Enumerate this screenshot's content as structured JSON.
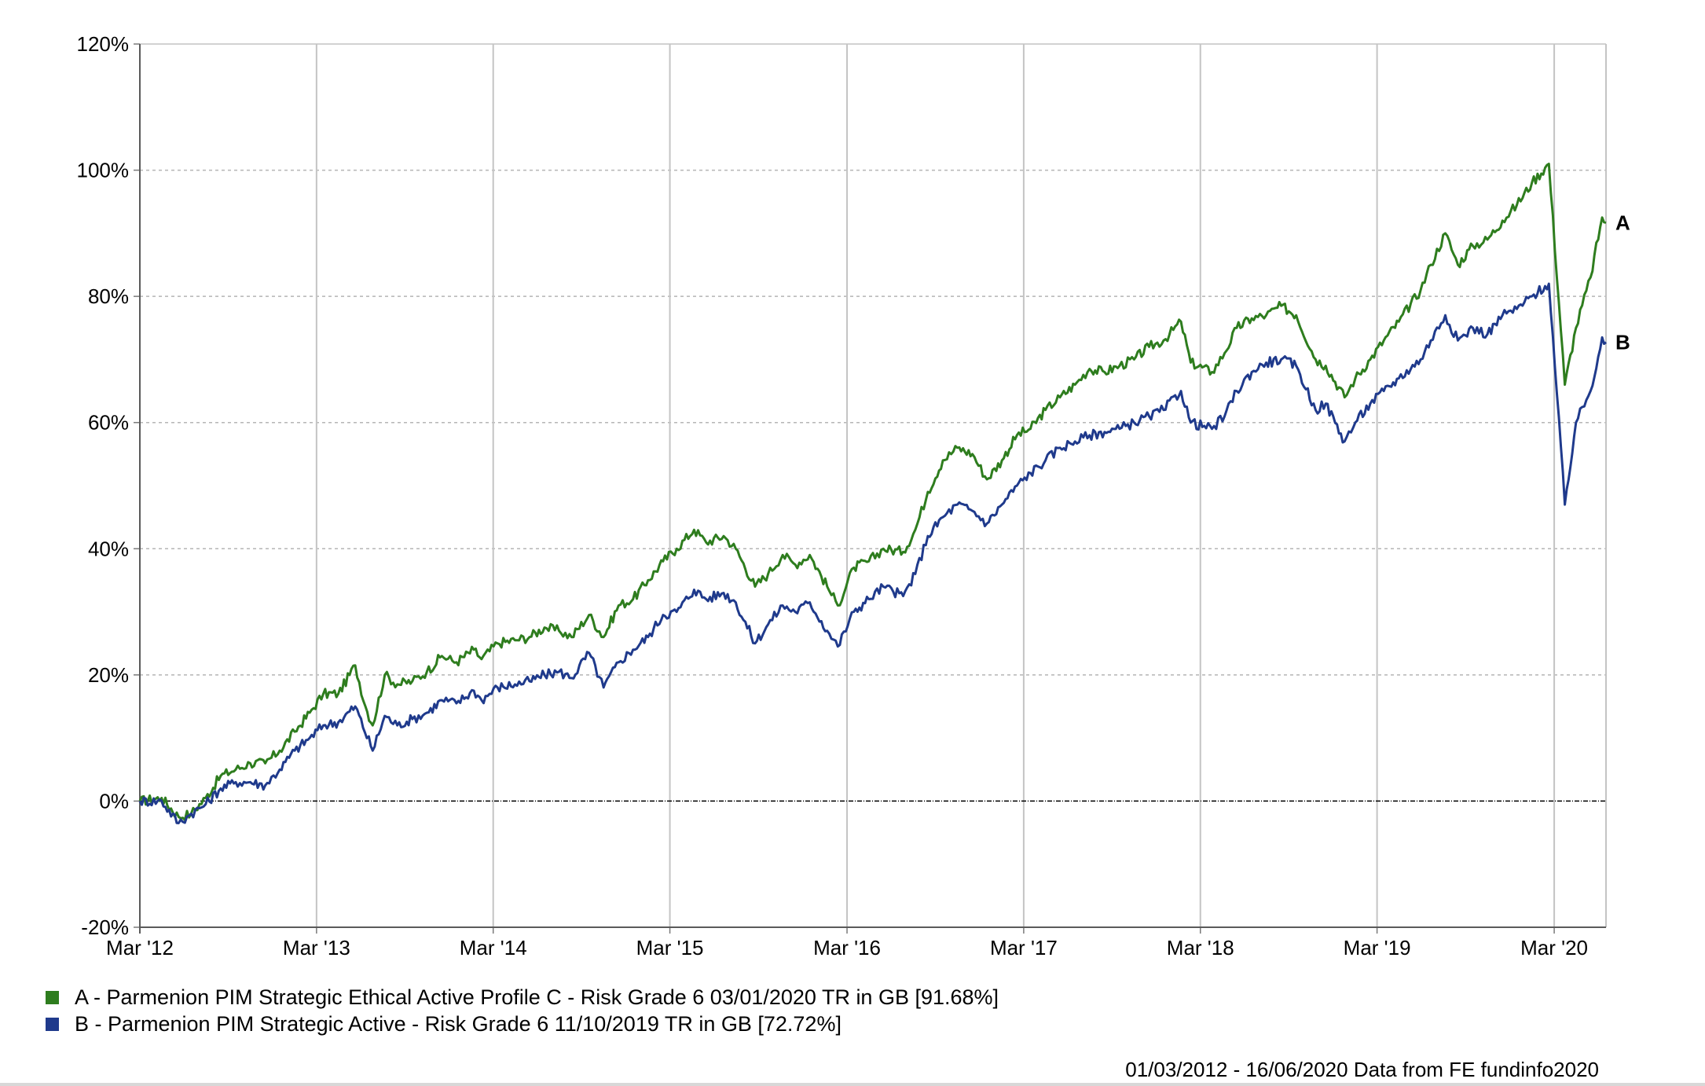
{
  "chart_data": {
    "type": "line",
    "title": "",
    "xlabel": "",
    "ylabel": "",
    "ylim": [
      -20,
      120
    ],
    "xlim": [
      "2012-03-01",
      "2020-06-16"
    ],
    "y_tick_labels": [
      "120%",
      "100%",
      "80%",
      "60%",
      "40%",
      "20%",
      "0%",
      "-20%"
    ],
    "y_tick_values": [
      120,
      100,
      80,
      60,
      40,
      20,
      0,
      -20
    ],
    "x_tick_labels": [
      "Mar '12",
      "Mar '13",
      "Mar '14",
      "Mar '15",
      "Mar '16",
      "Mar '17",
      "Mar '18",
      "Mar '19",
      "Mar '20"
    ],
    "x_tick_dates": [
      "2012-03-01",
      "2013-03-01",
      "2014-03-01",
      "2015-03-01",
      "2016-03-01",
      "2017-03-01",
      "2018-03-01",
      "2019-03-01",
      "2020-03-01"
    ],
    "grid": true,
    "legend_position": "bottom-left",
    "series": [
      {
        "name": "A - Parmenion PIM Strategic Ethical Active Profile C - Risk Grade 6 03/01/2020 TR in GB [91.68%]",
        "end_label": "A",
        "color": "#2e7d1e",
        "points": [
          [
            "2012-03-01",
            0
          ],
          [
            "2012-04-15",
            0.5
          ],
          [
            "2012-05-20",
            -2.5
          ],
          [
            "2012-06-15",
            -2
          ],
          [
            "2012-07-15",
            0.5
          ],
          [
            "2012-08-15",
            4
          ],
          [
            "2012-09-15",
            5
          ],
          [
            "2012-10-15",
            6
          ],
          [
            "2012-11-15",
            6
          ],
          [
            "2012-12-15",
            8
          ],
          [
            "2013-01-15",
            11
          ],
          [
            "2013-02-15",
            14
          ],
          [
            "2013-03-15",
            17
          ],
          [
            "2013-04-15",
            17
          ],
          [
            "2013-05-20",
            21.5
          ],
          [
            "2013-06-10",
            15
          ],
          [
            "2013-06-25",
            12
          ],
          [
            "2013-07-20",
            20
          ],
          [
            "2013-08-15",
            18.5
          ],
          [
            "2013-09-15",
            19
          ],
          [
            "2013-10-15",
            20.5
          ],
          [
            "2013-11-15",
            23
          ],
          [
            "2013-12-15",
            22
          ],
          [
            "2014-01-20",
            24
          ],
          [
            "2014-02-05",
            22.5
          ],
          [
            "2014-03-10",
            25
          ],
          [
            "2014-04-15",
            25.5
          ],
          [
            "2014-05-15",
            26
          ],
          [
            "2014-06-15",
            27.5
          ],
          [
            "2014-07-15",
            27
          ],
          [
            "2014-08-10",
            26
          ],
          [
            "2014-09-15",
            29.5
          ],
          [
            "2014-10-15",
            26
          ],
          [
            "2014-11-15",
            31
          ],
          [
            "2014-12-15",
            32
          ],
          [
            "2015-01-15",
            35
          ],
          [
            "2015-02-15",
            38
          ],
          [
            "2015-03-15",
            40
          ],
          [
            "2015-04-20",
            43
          ],
          [
            "2015-05-15",
            41
          ],
          [
            "2015-06-20",
            42
          ],
          [
            "2015-07-15",
            40
          ],
          [
            "2015-08-24",
            34
          ],
          [
            "2015-09-20",
            36
          ],
          [
            "2015-10-20",
            39
          ],
          [
            "2015-11-15",
            37.5
          ],
          [
            "2015-12-15",
            39
          ],
          [
            "2016-01-20",
            34
          ],
          [
            "2016-02-11",
            31
          ],
          [
            "2016-03-15",
            37
          ],
          [
            "2016-04-15",
            38
          ],
          [
            "2016-05-15",
            40
          ],
          [
            "2016-06-25",
            39.5
          ],
          [
            "2016-07-20",
            43
          ],
          [
            "2016-08-15",
            49
          ],
          [
            "2016-09-15",
            54
          ],
          [
            "2016-10-15",
            56
          ],
          [
            "2016-11-15",
            55
          ],
          [
            "2016-12-15",
            51
          ],
          [
            "2017-01-15",
            54
          ],
          [
            "2017-02-15",
            58
          ],
          [
            "2017-03-15",
            59
          ],
          [
            "2017-04-15",
            62
          ],
          [
            "2017-05-15",
            64
          ],
          [
            "2017-06-15",
            66
          ],
          [
            "2017-07-15",
            68.5
          ],
          [
            "2017-08-15",
            68
          ],
          [
            "2017-09-15",
            69
          ],
          [
            "2017-10-15",
            70
          ],
          [
            "2017-11-15",
            72
          ],
          [
            "2017-12-15",
            73
          ],
          [
            "2018-01-20",
            76
          ],
          [
            "2018-02-09",
            69.5
          ],
          [
            "2018-03-25",
            68
          ],
          [
            "2018-04-20",
            71
          ],
          [
            "2018-05-15",
            75
          ],
          [
            "2018-06-15",
            76.5
          ],
          [
            "2018-07-15",
            77
          ],
          [
            "2018-08-15",
            78.5
          ],
          [
            "2018-09-15",
            77
          ],
          [
            "2018-10-25",
            70
          ],
          [
            "2018-11-15",
            69
          ],
          [
            "2018-12-24",
            64
          ],
          [
            "2019-01-15",
            67
          ],
          [
            "2019-02-15",
            70
          ],
          [
            "2019-03-15",
            73
          ],
          [
            "2019-04-15",
            76
          ],
          [
            "2019-05-30",
            81
          ],
          [
            "2019-06-20",
            85
          ],
          [
            "2019-07-20",
            90
          ],
          [
            "2019-08-15",
            85
          ],
          [
            "2019-09-15",
            88
          ],
          [
            "2019-10-15",
            89
          ],
          [
            "2019-11-15",
            92
          ],
          [
            "2019-12-15",
            94.5
          ],
          [
            "2020-01-15",
            98
          ],
          [
            "2020-02-19",
            101
          ],
          [
            "2020-03-23",
            66
          ],
          [
            "2020-04-15",
            75
          ],
          [
            "2020-05-15",
            83
          ],
          [
            "2020-06-08",
            92.5
          ],
          [
            "2020-06-16",
            91.68
          ]
        ]
      },
      {
        "name": "B - Parmenion PIM Strategic Active - Risk Grade 6 11/10/2019 TR in GB [72.72%]",
        "end_label": "B",
        "color": "#1f3a8c",
        "points": [
          [
            "2012-03-01",
            0
          ],
          [
            "2012-04-15",
            0
          ],
          [
            "2012-05-20",
            -3.5
          ],
          [
            "2012-06-15",
            -2
          ],
          [
            "2012-07-15",
            -0.5
          ],
          [
            "2012-08-15",
            2
          ],
          [
            "2012-09-15",
            3
          ],
          [
            "2012-10-15",
            3
          ],
          [
            "2012-11-15",
            2.5
          ],
          [
            "2012-12-15",
            5
          ],
          [
            "2013-01-15",
            8
          ],
          [
            "2013-02-15",
            10
          ],
          [
            "2013-03-15",
            12
          ],
          [
            "2013-04-15",
            12.5
          ],
          [
            "2013-05-20",
            15
          ],
          [
            "2013-06-25",
            8
          ],
          [
            "2013-07-20",
            13.5
          ],
          [
            "2013-08-15",
            12
          ],
          [
            "2013-09-15",
            13
          ],
          [
            "2013-10-15",
            14
          ],
          [
            "2013-11-15",
            16
          ],
          [
            "2013-12-15",
            15.5
          ],
          [
            "2014-01-20",
            17.5
          ],
          [
            "2014-02-05",
            16
          ],
          [
            "2014-03-10",
            18
          ],
          [
            "2014-04-15",
            18.5
          ],
          [
            "2014-05-15",
            19
          ],
          [
            "2014-06-15",
            20
          ],
          [
            "2014-07-15",
            20.5
          ],
          [
            "2014-08-10",
            19.5
          ],
          [
            "2014-09-15",
            23.5
          ],
          [
            "2014-10-15",
            18
          ],
          [
            "2014-11-15",
            22
          ],
          [
            "2014-12-15",
            24
          ],
          [
            "2015-01-15",
            26
          ],
          [
            "2015-02-15",
            29.5
          ],
          [
            "2015-03-15",
            30
          ],
          [
            "2015-04-20",
            33.5
          ],
          [
            "2015-05-15",
            32
          ],
          [
            "2015-06-20",
            33
          ],
          [
            "2015-07-15",
            31.5
          ],
          [
            "2015-08-24",
            25
          ],
          [
            "2015-09-20",
            28
          ],
          [
            "2015-10-20",
            31
          ],
          [
            "2015-11-15",
            30
          ],
          [
            "2015-12-15",
            31.5
          ],
          [
            "2016-01-20",
            27
          ],
          [
            "2016-02-11",
            24.5
          ],
          [
            "2016-03-15",
            30
          ],
          [
            "2016-04-15",
            32
          ],
          [
            "2016-05-15",
            34
          ],
          [
            "2016-06-25",
            32.5
          ],
          [
            "2016-07-20",
            36
          ],
          [
            "2016-08-15",
            42
          ],
          [
            "2016-09-15",
            45
          ],
          [
            "2016-10-15",
            47
          ],
          [
            "2016-11-15",
            46
          ],
          [
            "2016-12-15",
            44
          ],
          [
            "2017-01-15",
            47
          ],
          [
            "2017-02-15",
            50
          ],
          [
            "2017-03-15",
            52
          ],
          [
            "2017-04-15",
            54
          ],
          [
            "2017-05-15",
            56
          ],
          [
            "2017-06-15",
            57
          ],
          [
            "2017-07-15",
            58
          ],
          [
            "2017-08-15",
            58.5
          ],
          [
            "2017-09-15",
            59
          ],
          [
            "2017-10-15",
            60
          ],
          [
            "2017-11-15",
            61
          ],
          [
            "2017-12-15",
            62
          ],
          [
            "2018-01-20",
            65
          ],
          [
            "2018-02-09",
            60
          ],
          [
            "2018-03-25",
            59
          ],
          [
            "2018-04-20",
            61
          ],
          [
            "2018-05-15",
            65
          ],
          [
            "2018-06-15",
            68
          ],
          [
            "2018-07-15",
            69.5
          ],
          [
            "2018-08-15",
            70
          ],
          [
            "2018-09-15",
            69
          ],
          [
            "2018-10-25",
            62
          ],
          [
            "2018-11-15",
            63
          ],
          [
            "2018-12-24",
            57
          ],
          [
            "2019-01-15",
            60
          ],
          [
            "2019-02-15",
            63
          ],
          [
            "2019-03-15",
            65
          ],
          [
            "2019-04-15",
            67
          ],
          [
            "2019-05-30",
            70
          ],
          [
            "2019-06-20",
            73
          ],
          [
            "2019-07-20",
            77
          ],
          [
            "2019-08-15",
            73
          ],
          [
            "2019-09-15",
            75
          ],
          [
            "2019-10-15",
            74
          ],
          [
            "2019-11-15",
            77
          ],
          [
            "2019-12-15",
            78
          ],
          [
            "2020-01-15",
            80
          ],
          [
            "2020-02-19",
            82
          ],
          [
            "2020-03-23",
            47
          ],
          [
            "2020-04-15",
            60
          ],
          [
            "2020-05-15",
            65
          ],
          [
            "2020-06-08",
            73.5
          ],
          [
            "2020-06-16",
            72.72
          ]
        ]
      }
    ]
  },
  "legend": {
    "items": [
      {
        "label": "A - Parmenion PIM Strategic Ethical Active Profile C - Risk Grade 6 03/01/2020 TR in GB [91.68%]",
        "color": "#2e7d1e"
      },
      {
        "label": "B - Parmenion PIM Strategic Active - Risk Grade 6 11/10/2019 TR in GB [72.72%]",
        "color": "#1f3a8c"
      }
    ]
  },
  "source_text": "01/03/2012 - 16/06/2020 Data from FE fundinfo2020"
}
